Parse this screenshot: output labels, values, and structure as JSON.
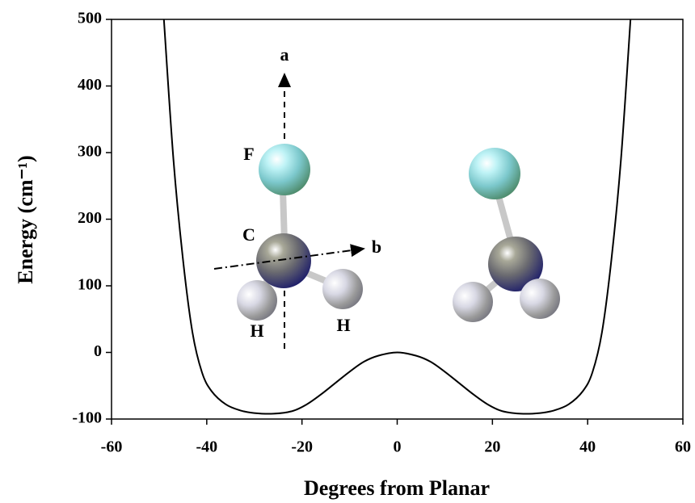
{
  "chart_data": {
    "type": "line",
    "x_label": "Degrees from Planar",
    "y_label": "Energy (cm⁻¹)",
    "x": [
      -49,
      -47,
      -45,
      -43,
      -41,
      -39,
      -36,
      -33,
      -30,
      -26,
      -22,
      -19,
      -16,
      -13,
      -10,
      -7,
      -4,
      0,
      4,
      7,
      10,
      13,
      16,
      19,
      22,
      26,
      30,
      33,
      36,
      39,
      41,
      43,
      45,
      47,
      49
    ],
    "series": [
      {
        "color": "#000000",
        "values": [
          500,
          290,
          140,
          30,
          -30,
          -58,
          -78,
          -87,
          -91,
          -92,
          -88,
          -78,
          -63,
          -46,
          -29,
          -14,
          -5,
          0,
          -5,
          -14,
          -29,
          -46,
          -63,
          -78,
          -88,
          -92,
          -91,
          -87,
          -78,
          -58,
          -30,
          30,
          140,
          290,
          500
        ]
      }
    ],
    "xlim": [
      -60,
      60
    ],
    "xticks": [
      -60,
      -40,
      -20,
      0,
      20,
      40,
      60
    ],
    "ylim": [
      -100,
      500
    ],
    "yticks": [
      -100,
      0,
      100,
      200,
      300,
      400,
      500
    ],
    "grid": false,
    "annotations": [
      "a",
      "b",
      "F",
      "C",
      "H",
      "H"
    ]
  }
}
